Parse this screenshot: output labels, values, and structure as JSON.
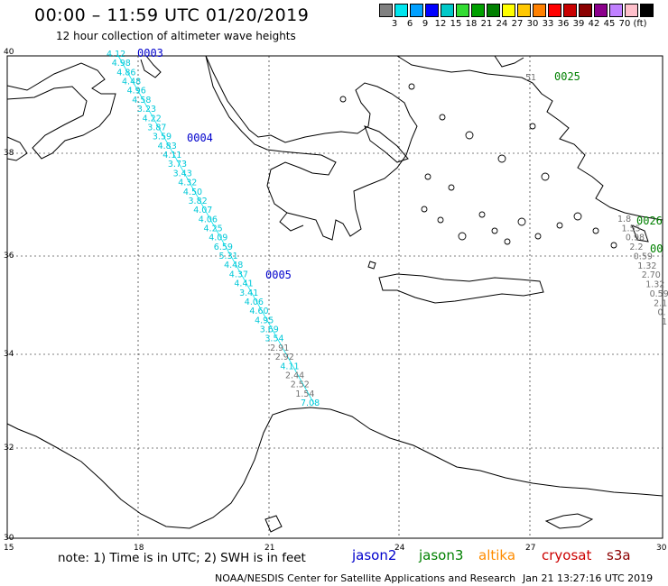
{
  "header": {
    "title": "00:00 – 11:59 UTC 01/20/2019",
    "subtitle": "12 hour collection of altimeter wave heights"
  },
  "color_scale": {
    "swatches": [
      "#808080",
      "#00e5ee",
      "#00a0ff",
      "#0000ff",
      "#00c8c8",
      "#32dc32",
      "#00a000",
      "#008000",
      "#ffff00",
      "#ffc800",
      "#ff8000",
      "#ff0000",
      "#c80000",
      "#8b0000",
      "#8b008b",
      "#c080ff",
      "#ffc0cb",
      "#000000"
    ],
    "labels": [
      "3",
      "6",
      "9",
      "12",
      "15",
      "18",
      "21",
      "24",
      "27",
      "30",
      "33",
      "36",
      "39",
      "42",
      "45",
      "70",
      "(ft)"
    ]
  },
  "axes": {
    "lat_labels": [
      "40",
      "38",
      "36",
      "34",
      "32",
      "30"
    ],
    "lon_labels": [
      "15",
      "18",
      "21",
      "24",
      "27",
      "30"
    ]
  },
  "passes": [
    {
      "id": "0003",
      "color": "#0000cc"
    },
    {
      "id": "0004",
      "color": "#0000cc"
    },
    {
      "id": "0005",
      "color": "#0000cc"
    },
    {
      "id": "0025",
      "color": "#008000"
    },
    {
      "id": "0026",
      "color": "#008000"
    },
    {
      "id": "00",
      "color": "#008000"
    }
  ],
  "swh_track_main": {
    "cyan_values": [
      "4.12",
      "4.98",
      "4.86",
      "4.48",
      "4.96",
      "4.58",
      "3.23",
      "4.22",
      "3.87",
      "3.59",
      "4.83",
      "4.11",
      "3.73",
      "3.43",
      "4.32",
      "4.50",
      "3.82",
      "4.07",
      "4.06",
      "4.25",
      "4.09",
      "6.59",
      "5.31",
      "4.48",
      "4.37",
      "4.41",
      "3.41",
      "4.06",
      "4.60",
      "4.95",
      "3.69",
      "3.54"
    ],
    "gray_values": [
      "2.91",
      "2.92"
    ],
    "cyan_values_2": [
      "4.11"
    ],
    "gray_values_2": [
      "2.44",
      "2.52",
      "1.54"
    ],
    "cyan_values_3": [
      "7.08"
    ]
  },
  "swh_track_east": {
    "gray_values": [
      "1.8",
      "1.55",
      "0.98",
      "2.2",
      "0.59",
      "1.32",
      "2.70",
      "1.32",
      "0.59",
      "2.1",
      "0.",
      "1"
    ]
  },
  "swh_track_ne": {
    "gray_values": [
      "51"
    ]
  },
  "footer": {
    "note": "note: 1) Time is in UTC; 2) SWH is in feet",
    "satellites": [
      {
        "name": "jason2",
        "color": "#0000cc"
      },
      {
        "name": "jason3",
        "color": "#008000"
      },
      {
        "name": "altika",
        "color": "#ff8c00"
      },
      {
        "name": "cryosat",
        "color": "#cc0000"
      },
      {
        "name": "s3a",
        "color": "#8b0000"
      }
    ],
    "credit": "NOAA/NESDIS Center for Satellite Applications and Research",
    "timestamp": "Jan 21 13:27:16 UTC 2019"
  }
}
